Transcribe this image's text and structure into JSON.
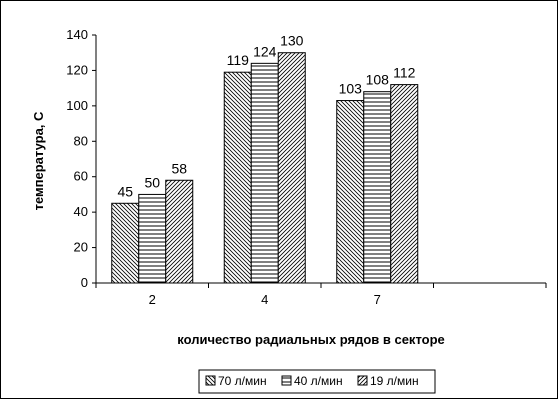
{
  "chart_data": {
    "type": "bar",
    "categories": [
      "2",
      "4",
      "7",
      ""
    ],
    "series": [
      {
        "name": "70 л/мин",
        "values": [
          45,
          119,
          103,
          null
        ],
        "pattern": "diag-back"
      },
      {
        "name": "40 л/мин",
        "values": [
          50,
          124,
          108,
          null
        ],
        "pattern": "horizontal"
      },
      {
        "name": "19 л/мин",
        "values": [
          58,
          130,
          112,
          null
        ],
        "pattern": "diag-fwd"
      }
    ],
    "data_labels": [
      [
        "45",
        "119",
        "103"
      ],
      [
        "50",
        "124",
        "108"
      ],
      [
        "58",
        "130",
        "112"
      ]
    ],
    "title": "",
    "xlabel": "количество радиальных рядов в секторе",
    "ylabel": "температура, С",
    "ylim": [
      0,
      140
    ],
    "yticks": [
      0,
      20,
      40,
      60,
      80,
      100,
      120,
      140
    ],
    "grid": false,
    "legend_position": "bottom",
    "colors": {
      "bar_stroke": "#000000",
      "bar_fill": "#ffffff",
      "frame": "#000000"
    }
  }
}
